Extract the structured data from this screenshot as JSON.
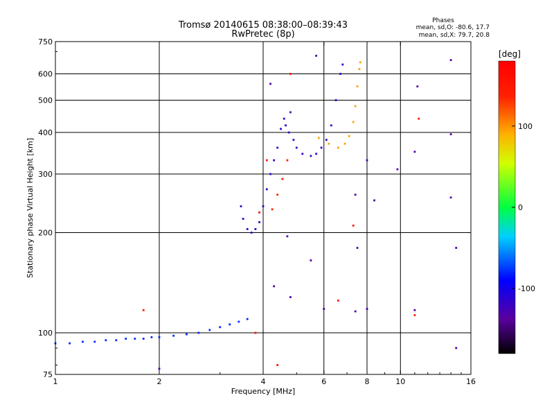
{
  "chart_data": {
    "type": "scatter",
    "title": "Tromsø 20140615 08:38:00–08:39:43",
    "subtitle": "RwPretec (8p)",
    "xlabel": "Frequency [MHz]",
    "ylabel": "Stationary phase Virtual Height [km]",
    "xscale": "log",
    "yscale": "log",
    "xlim": [
      1,
      16
    ],
    "ylim": [
      75,
      750
    ],
    "xticks": [
      1,
      2,
      4,
      6,
      8,
      10,
      16
    ],
    "yticks": [
      75,
      100,
      200,
      300,
      400,
      500,
      600,
      750
    ],
    "grid": true,
    "phase_stats": {
      "title": "Phases",
      "line1": "mean, sd,O:  -80.6, 17.7",
      "line2": "mean, sd,X:  79.7, 20.8"
    },
    "colorbar": {
      "label": "[deg]",
      "range": [
        -180,
        180
      ],
      "ticks": [
        -100,
        0,
        100
      ],
      "colormap": "rainbow"
    },
    "traces": [
      {
        "mode": "O",
        "phase_deg": -80,
        "points": [
          [
            1.0,
            93
          ],
          [
            1.1,
            93
          ],
          [
            1.2,
            94
          ],
          [
            1.3,
            94
          ],
          [
            1.4,
            95
          ],
          [
            1.5,
            95
          ],
          [
            1.6,
            96
          ],
          [
            1.7,
            96
          ],
          [
            1.8,
            96
          ],
          [
            1.9,
            97
          ],
          [
            2.0,
            97
          ],
          [
            2.2,
            98
          ],
          [
            2.4,
            99
          ],
          [
            2.6,
            100
          ],
          [
            2.8,
            102
          ],
          [
            3.0,
            104
          ],
          [
            3.2,
            106
          ],
          [
            3.4,
            108
          ],
          [
            3.6,
            110
          ]
        ]
      },
      {
        "mode": "O",
        "phase_deg": -115,
        "points": [
          [
            3.45,
            240
          ],
          [
            3.5,
            220
          ],
          [
            3.6,
            205
          ],
          [
            3.7,
            200
          ],
          [
            3.8,
            205
          ],
          [
            3.9,
            215
          ],
          [
            4.0,
            240
          ],
          [
            4.1,
            270
          ],
          [
            4.2,
            300
          ],
          [
            4.3,
            330
          ],
          [
            4.4,
            360
          ],
          [
            4.5,
            410
          ],
          [
            4.6,
            440
          ],
          [
            4.65,
            420
          ],
          [
            4.75,
            400
          ],
          [
            4.9,
            380
          ],
          [
            5.0,
            360
          ],
          [
            5.2,
            345
          ],
          [
            5.5,
            340
          ],
          [
            5.7,
            345
          ],
          [
            5.9,
            360
          ],
          [
            6.1,
            380
          ],
          [
            6.3,
            420
          ],
          [
            6.5,
            500
          ],
          [
            6.7,
            600
          ],
          [
            6.8,
            640
          ]
        ]
      },
      {
        "mode": "X",
        "phase_deg": 95,
        "points": [
          [
            5.8,
            385
          ],
          [
            6.2,
            370
          ],
          [
            6.6,
            360
          ],
          [
            6.9,
            370
          ],
          [
            7.1,
            390
          ],
          [
            7.3,
            430
          ],
          [
            7.4,
            480
          ],
          [
            7.5,
            550
          ],
          [
            7.6,
            620
          ],
          [
            7.65,
            650
          ]
        ]
      },
      {
        "mode": "X",
        "phase_deg": 140,
        "points": [
          [
            4.25,
            235
          ],
          [
            4.4,
            260
          ],
          [
            4.55,
            290
          ],
          [
            4.7,
            330
          ]
        ]
      },
      {
        "mode": "scatter",
        "phase_deg": -130,
        "points": [
          [
            5.7,
            680
          ],
          [
            4.2,
            560
          ],
          [
            4.8,
            460
          ],
          [
            8.0,
            330
          ],
          [
            7.4,
            260
          ],
          [
            8.4,
            250
          ],
          [
            9.8,
            310
          ],
          [
            11.2,
            550
          ],
          [
            11.0,
            350
          ],
          [
            14.0,
            660
          ],
          [
            14.0,
            395
          ],
          [
            14.0,
            255
          ],
          [
            14.5,
            180
          ],
          [
            7.5,
            180
          ],
          [
            4.7,
            195
          ],
          [
            5.5,
            165
          ],
          [
            4.8,
            128
          ],
          [
            6.0,
            118
          ],
          [
            8.0,
            118
          ],
          [
            11.0,
            117
          ],
          [
            14.5,
            90
          ],
          [
            4.3,
            138
          ],
          [
            7.4,
            116
          ],
          [
            2.0,
            78
          ]
        ]
      },
      {
        "mode": "scatter",
        "phase_deg": 150,
        "points": [
          [
            1.8,
            117
          ],
          [
            4.8,
            600
          ],
          [
            11.3,
            440
          ],
          [
            7.3,
            210
          ],
          [
            4.4,
            80
          ],
          [
            3.8,
            100
          ],
          [
            6.6,
            125
          ],
          [
            11.0,
            113
          ],
          [
            3.9,
            230
          ],
          [
            4.1,
            330
          ]
        ]
      }
    ]
  }
}
